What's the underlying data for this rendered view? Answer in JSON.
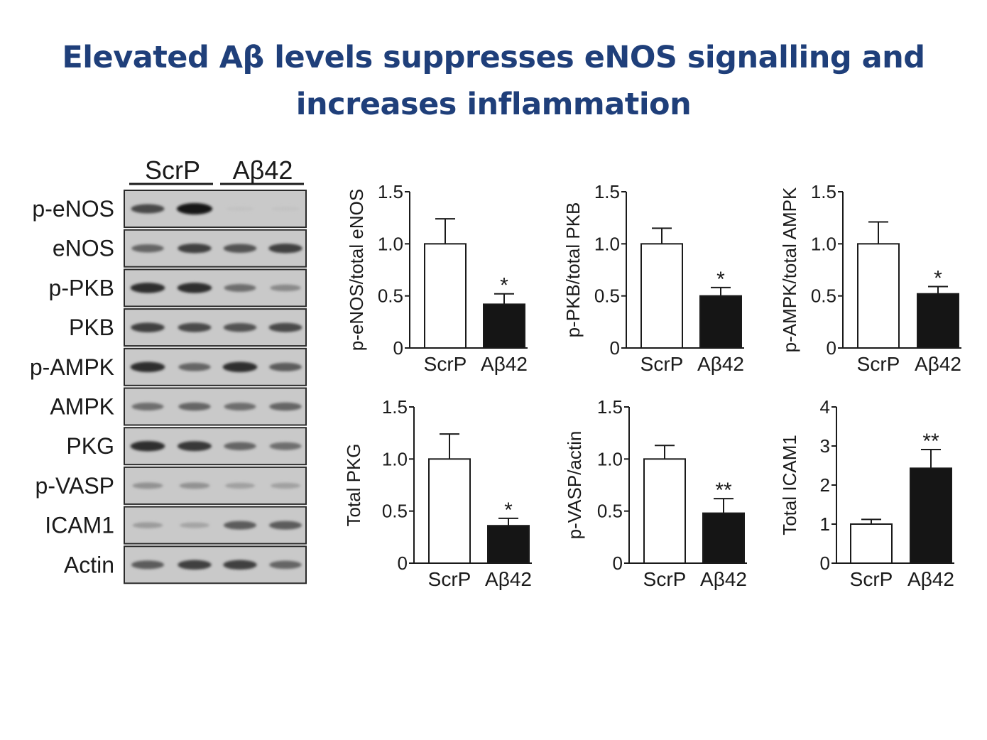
{
  "slide": {
    "title_line1": "Elevated Aβ levels suppresses eNOS signalling and",
    "title_line2": "increases inflammation"
  },
  "blot": {
    "groups": [
      "ScrP",
      "Aβ42"
    ],
    "rows": [
      {
        "label": "p-eNOS",
        "bands": [
          0.7,
          1.0,
          0.03,
          0.03
        ]
      },
      {
        "label": "eNOS",
        "bands": [
          0.55,
          0.75,
          0.65,
          0.75
        ]
      },
      {
        "label": "p-PKB",
        "bands": [
          0.85,
          0.85,
          0.5,
          0.35
        ]
      },
      {
        "label": "PKB",
        "bands": [
          0.75,
          0.7,
          0.65,
          0.7
        ]
      },
      {
        "label": "p-AMPK",
        "bands": [
          0.85,
          0.55,
          0.85,
          0.6
        ]
      },
      {
        "label": "AMPK",
        "bands": [
          0.5,
          0.55,
          0.5,
          0.55
        ]
      },
      {
        "label": "PKG",
        "bands": [
          0.85,
          0.8,
          0.55,
          0.5
        ]
      },
      {
        "label": "p-VASP",
        "bands": [
          0.3,
          0.3,
          0.22,
          0.22
        ]
      },
      {
        "label": "ICAM1",
        "bands": [
          0.25,
          0.2,
          0.6,
          0.6
        ]
      },
      {
        "label": "Actin",
        "bands": [
          0.6,
          0.75,
          0.75,
          0.55
        ]
      }
    ]
  },
  "chart_data": [
    {
      "type": "bar",
      "categories": [
        "ScrP",
        "Aβ42"
      ],
      "values": [
        1.0,
        0.42
      ],
      "errors": [
        0.24,
        0.1
      ],
      "significance": [
        "",
        "*"
      ],
      "ylabel": "p-eNOS/total eNOS",
      "ylim": [
        0,
        1.5
      ],
      "yticks": [
        "0",
        "0.5",
        "1.0",
        "1.5"
      ],
      "fills": [
        "#ffffff",
        "#151515"
      ]
    },
    {
      "type": "bar",
      "categories": [
        "ScrP",
        "Aβ42"
      ],
      "values": [
        1.0,
        0.5
      ],
      "errors": [
        0.15,
        0.08
      ],
      "significance": [
        "",
        "*"
      ],
      "ylabel": "p-PKB/total PKB",
      "ylim": [
        0,
        1.5
      ],
      "yticks": [
        "0",
        "0.5",
        "1.0",
        "1.5"
      ],
      "fills": [
        "#ffffff",
        "#151515"
      ]
    },
    {
      "type": "bar",
      "categories": [
        "ScrP",
        "Aβ42"
      ],
      "values": [
        1.0,
        0.52
      ],
      "errors": [
        0.21,
        0.07
      ],
      "significance": [
        "",
        "*"
      ],
      "ylabel": "p-AMPK/total AMPK",
      "ylim": [
        0,
        1.5
      ],
      "yticks": [
        "0",
        "0.5",
        "1.0",
        "1.5"
      ],
      "fills": [
        "#ffffff",
        "#151515"
      ]
    },
    {
      "type": "bar",
      "categories": [
        "ScrP",
        "Aβ42"
      ],
      "values": [
        1.0,
        0.36
      ],
      "errors": [
        0.24,
        0.07
      ],
      "significance": [
        "",
        "*"
      ],
      "ylabel": "Total PKG",
      "ylim": [
        0,
        1.5
      ],
      "yticks": [
        "0",
        "0.5",
        "1.0",
        "1.5"
      ],
      "fills": [
        "#ffffff",
        "#151515"
      ]
    },
    {
      "type": "bar",
      "categories": [
        "ScrP",
        "Aβ42"
      ],
      "values": [
        1.0,
        0.48
      ],
      "errors": [
        0.13,
        0.14
      ],
      "significance": [
        "",
        "**"
      ],
      "ylabel": "p-VASP/actin",
      "ylim": [
        0,
        1.5
      ],
      "yticks": [
        "0",
        "0.5",
        "1.0",
        "1.5"
      ],
      "fills": [
        "#ffffff",
        "#151515"
      ]
    },
    {
      "type": "bar",
      "categories": [
        "ScrP",
        "Aβ42"
      ],
      "values": [
        1.0,
        2.43
      ],
      "errors": [
        0.12,
        0.48
      ],
      "significance": [
        "",
        "**"
      ],
      "ylabel": "Total ICAM1",
      "ylim": [
        0,
        4
      ],
      "yticks": [
        "0",
        "1",
        "2",
        "3",
        "4"
      ],
      "fills": [
        "#ffffff",
        "#151515"
      ]
    }
  ]
}
